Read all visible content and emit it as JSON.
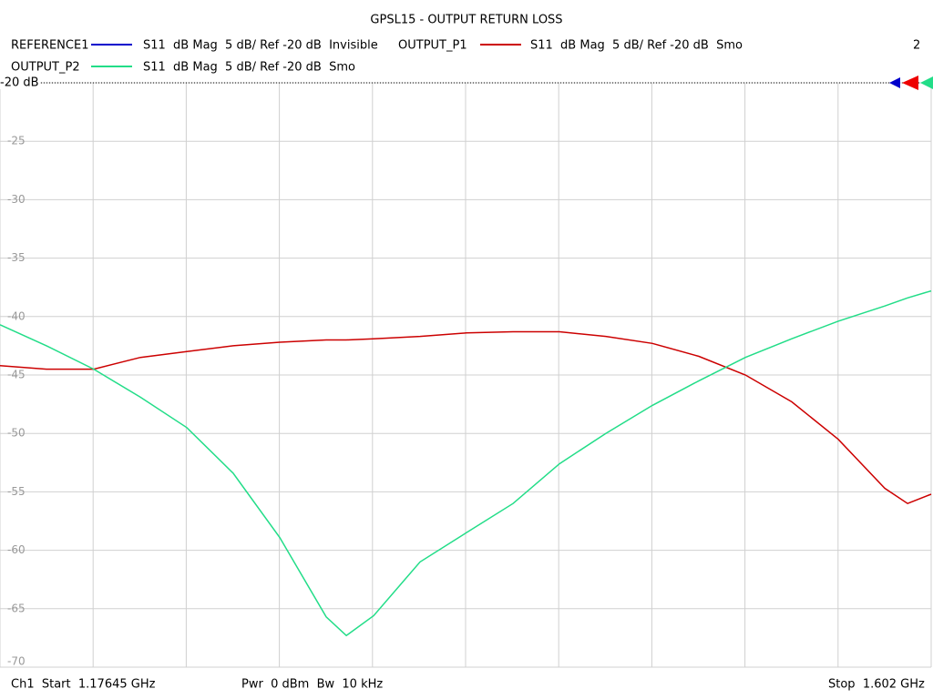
{
  "chart_data": {
    "type": "line",
    "title": "GPSL15 - OUTPUT RETURN LOSS",
    "x": [
      1.17645,
      1.1977,
      1.2193,
      1.2406,
      1.2618,
      1.283,
      1.3043,
      1.3255,
      1.3347,
      1.3472,
      1.3684,
      1.3896,
      1.4109,
      1.4321,
      1.4533,
      1.4746,
      1.4958,
      1.5171,
      1.5383,
      1.5595,
      1.5808,
      1.5912,
      1.602
    ],
    "xlim": [
      1.17645,
      1.602
    ],
    "series": [
      {
        "name": "REFERENCE1",
        "color": "#0000cc",
        "description": "S11  dB Mag  5 dB/ Ref -20 dB  Invisible"
      },
      {
        "name": "OUTPUT_P1",
        "color": "#cc0000",
        "description": "S11  dB Mag  5 dB/ Ref -20 dB  Smo",
        "values": [
          -44.2,
          -44.5,
          -44.5,
          -43.5,
          -43.0,
          -42.5,
          -42.2,
          -42.0,
          -42.0,
          -41.9,
          -41.7,
          -41.4,
          -41.3,
          -41.3,
          -41.7,
          -42.3,
          -43.4,
          -45.0,
          -47.3,
          -50.5,
          -54.7,
          -56.0,
          -55.2
        ]
      },
      {
        "name": "OUTPUT_P2",
        "color": "#22dd88",
        "description": "S11  dB Mag  5 dB/ Ref -20 dB  Smo",
        "values": [
          -40.7,
          -42.5,
          -44.5,
          -46.9,
          -49.5,
          -53.4,
          -58.9,
          -65.7,
          -67.3,
          -65.6,
          -61.0,
          -58.5,
          -56.0,
          -52.6,
          -50.0,
          -47.6,
          -45.5,
          -43.5,
          -41.9,
          -40.4,
          -39.1,
          -38.4,
          -37.8
        ]
      }
    ],
    "ylim": [
      -70,
      -20
    ],
    "yticks": [
      -20,
      -25,
      -30,
      -35,
      -40,
      -45,
      -50,
      -55,
      -60,
      -65,
      -70
    ],
    "grid": true,
    "reference_label": "-20 dB",
    "window_number": "2",
    "start_label": "Ch1  Start  1.17645 GHz",
    "power_label": "Pwr  0 dBm  Bw  10 kHz",
    "stop_label": "Stop  1.602 GHz"
  }
}
